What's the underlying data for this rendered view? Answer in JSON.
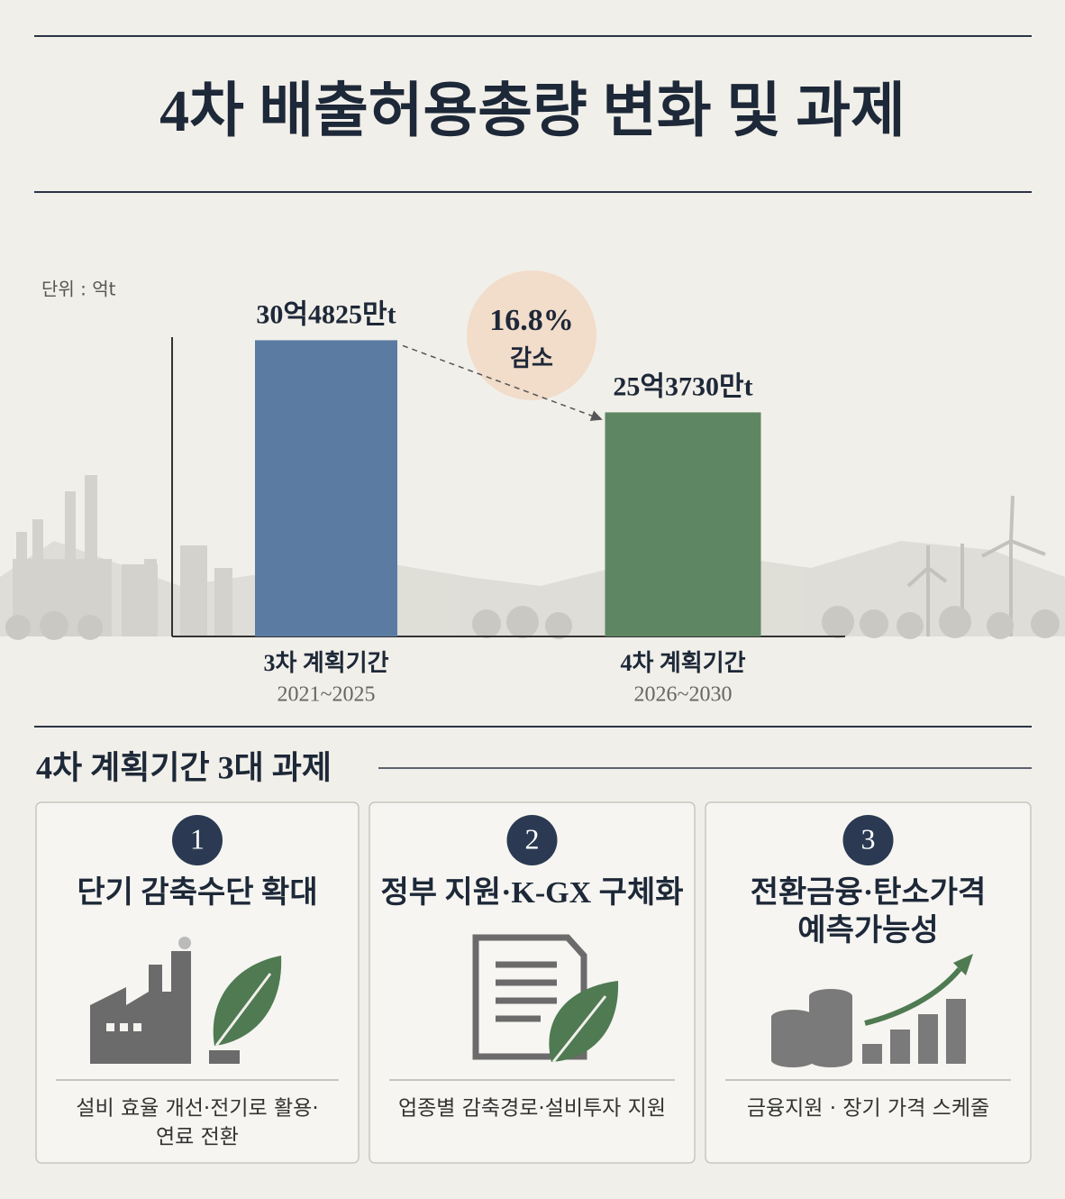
{
  "header": {
    "title": "4차 배출허용총량 변화 및 과제"
  },
  "chart_data": {
    "type": "bar",
    "unit_label": "단위 : 억t",
    "categories": [
      "3차 계획기간",
      "4차 계획기간"
    ],
    "periods": [
      "2021~2025",
      "2026~2030"
    ],
    "values": [
      30.4825,
      25.373
    ],
    "value_labels": [
      "30억4825만t",
      "25억3730만t"
    ],
    "colors": [
      "#5b7ba3",
      "#5f8663"
    ],
    "ylim": [
      9.5,
      30.7
    ],
    "annotation": {
      "text": "16.8%",
      "subtext": "감소"
    }
  },
  "tasks": {
    "title": "4차 계획기간 3대 과제",
    "items": [
      {
        "number": "1",
        "title_lines": [
          "단기 감축수단 확대"
        ],
        "description_lines": [
          "설비 효율 개선·전기로 활용·",
          "연료 전환"
        ]
      },
      {
        "number": "2",
        "title_lines": [
          "정부 지원·K-GX 구체화"
        ],
        "description_lines": [
          "업종별 감축경로·설비투자 지원"
        ]
      },
      {
        "number": "3",
        "title_lines": [
          "전환금융·탄소가격",
          "예측가능성"
        ],
        "description_lines": [
          "금융지원 · 장기 가격 스케줄"
        ]
      }
    ]
  }
}
